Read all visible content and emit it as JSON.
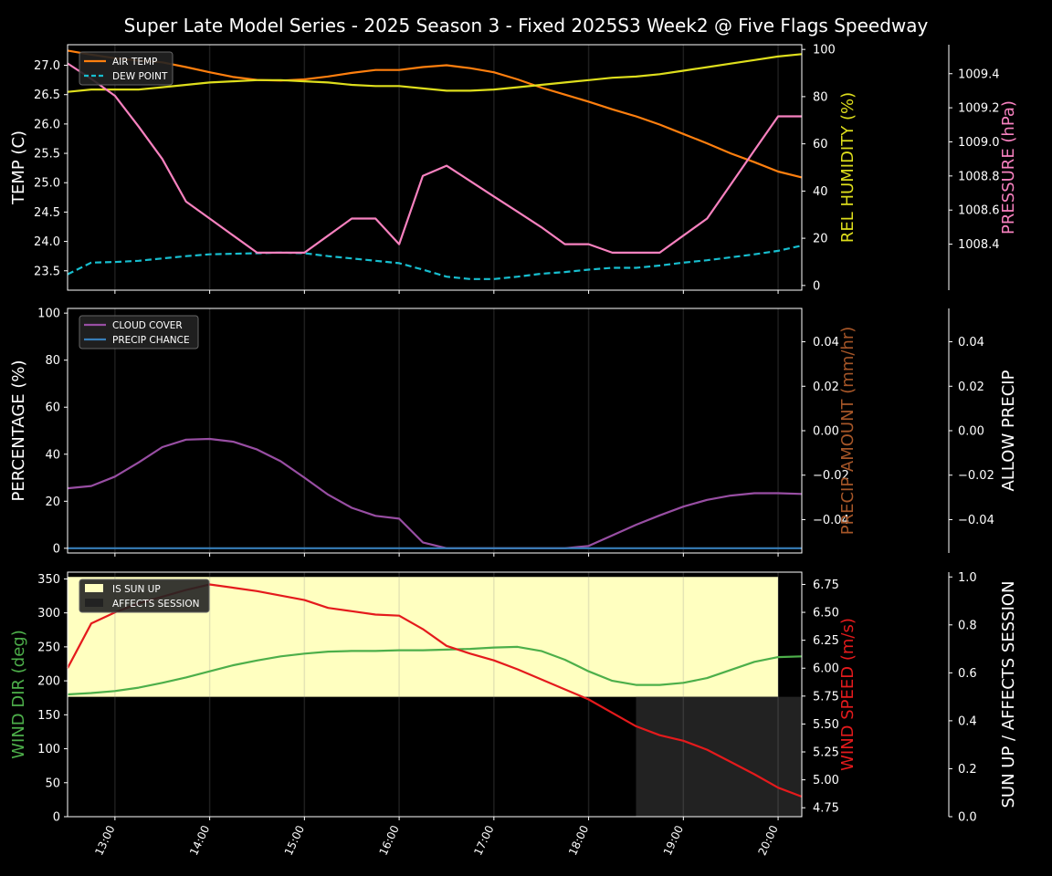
{
  "title": "Super Late Model Series - 2025 Season 3 - Fixed 2025S3 Week2 @ Five Flags Speedway",
  "colors": {
    "background": "#000000",
    "foreground": "#ffffff",
    "air_temp": "#ff7f0e",
    "dew_point": "#17becf",
    "humidity": "#dede1c",
    "pressure": "#f781bf",
    "cloud": "#984ea3",
    "precip_chance": "#377eb8",
    "precip_amount_label": "#a65628",
    "wind_dir": "#4daf4a",
    "wind_speed": "#e41a1c",
    "sun_up": "#ffffc0",
    "affects_session": "#222222"
  },
  "chart_data": [
    {
      "type": "line",
      "panel": "weather",
      "x": [
        "12:30",
        "12:45",
        "13:00",
        "13:15",
        "13:30",
        "13:45",
        "14:00",
        "14:15",
        "14:30",
        "14:45",
        "15:00",
        "15:15",
        "15:30",
        "15:45",
        "16:00",
        "16:15",
        "16:30",
        "16:45",
        "17:00",
        "17:15",
        "17:30",
        "17:45",
        "18:00",
        "18:15",
        "18:30",
        "18:45",
        "19:00",
        "19:15",
        "19:30",
        "19:45",
        "20:00",
        "20:15"
      ],
      "xticks": [
        "13:00",
        "14:00",
        "15:00",
        "16:00",
        "17:00",
        "18:00",
        "19:00",
        "20:00"
      ],
      "legend": [
        "AIR TEMP",
        "DEW POINT"
      ],
      "legend_position": "top-left",
      "left_axis": {
        "label": "TEMP (C)",
        "ylim": [
          23.17,
          27.35
        ],
        "ticks": [
          "23.5",
          "24.0",
          "24.5",
          "25.0",
          "25.5",
          "26.0",
          "26.5",
          "27.0"
        ]
      },
      "mid_axis": {
        "label": "REL HUMIDITY (%)",
        "ylim": [
          -2,
          102
        ],
        "ticks": [
          "0",
          "20",
          "40",
          "60",
          "80",
          "100"
        ]
      },
      "right_axis": {
        "label": "PRESSURE (hPa)",
        "ylim": [
          1008.13,
          1009.57
        ],
        "ticks": [
          "1008.4",
          "1008.6",
          "1008.8",
          "1009.0",
          "1009.2",
          "1009.4"
        ]
      },
      "series": [
        {
          "name": "AIR TEMP",
          "axis": "left",
          "style": "solid",
          "values": [
            27.25,
            27.18,
            27.12,
            27.08,
            27.05,
            26.97,
            26.88,
            26.8,
            26.75,
            26.74,
            26.76,
            26.81,
            26.87,
            26.92,
            26.92,
            26.97,
            27.0,
            26.95,
            26.88,
            26.76,
            26.62,
            26.5,
            26.38,
            26.25,
            26.13,
            25.99,
            25.83,
            25.67,
            25.5,
            25.35,
            25.19,
            25.09
          ]
        },
        {
          "name": "DEW POINT",
          "axis": "left",
          "style": "dashed",
          "values": [
            23.44,
            23.64,
            23.65,
            23.67,
            23.71,
            23.75,
            23.78,
            23.79,
            23.8,
            23.81,
            23.8,
            23.75,
            23.71,
            23.67,
            23.63,
            23.52,
            23.4,
            23.36,
            23.36,
            23.4,
            23.45,
            23.48,
            23.52,
            23.55,
            23.55,
            23.59,
            23.64,
            23.68,
            23.73,
            23.78,
            23.84,
            23.93
          ]
        },
        {
          "axis": "mid",
          "style": "solid",
          "values": [
            82,
            83,
            83,
            83,
            84,
            85,
            86,
            86.5,
            87,
            87,
            86.5,
            86,
            85,
            84.5,
            84.5,
            83.5,
            82.5,
            82.5,
            83,
            84,
            85,
            86,
            87,
            88,
            88.5,
            89.5,
            91,
            92.5,
            94,
            95.5,
            97,
            98
          ]
        },
        {
          "axis": "right",
          "style": "solid",
          "values": [
            1009.46,
            1009.37,
            1009.27,
            1009.09,
            1008.9,
            1008.65,
            1008.55,
            1008.45,
            1008.35,
            1008.35,
            1008.35,
            1008.45,
            1008.55,
            1008.55,
            1008.4,
            1008.8,
            1008.86,
            1008.77,
            1008.68,
            1008.59,
            1008.5,
            1008.4,
            1008.4,
            1008.35,
            1008.35,
            1008.35,
            1008.45,
            1008.55,
            1008.75,
            1008.95,
            1009.15,
            1009.15
          ]
        }
      ]
    },
    {
      "type": "line",
      "panel": "clouds",
      "x": [
        "12:30",
        "12:45",
        "13:00",
        "13:15",
        "13:30",
        "13:45",
        "14:00",
        "14:15",
        "14:30",
        "14:45",
        "15:00",
        "15:15",
        "15:30",
        "15:45",
        "16:00",
        "16:15",
        "16:30",
        "16:45",
        "17:00",
        "17:15",
        "17:30",
        "17:45",
        "18:00",
        "18:15",
        "18:30",
        "18:45",
        "19:00",
        "19:15",
        "19:30",
        "19:45",
        "20:00",
        "20:15"
      ],
      "legend": [
        "CLOUD COVER",
        "PRECIP CHANCE"
      ],
      "legend_position": "top-left",
      "left_axis": {
        "label": "PERCENTAGE (%)",
        "ylim": [
          -2,
          102
        ],
        "ticks": [
          "0",
          "20",
          "40",
          "60",
          "80",
          "100"
        ]
      },
      "mid_axis": {
        "label": "PRECIP AMOUNT (mm/hr)",
        "ylim": [
          -0.055,
          0.055
        ],
        "ticks": [
          "−0.04",
          "−0.02",
          "0.00",
          "0.02",
          "0.04"
        ]
      },
      "right_axis": {
        "label": "ALLOW PRECIP",
        "ylim": [
          -0.055,
          0.055
        ],
        "ticks": [
          "−0.04",
          "−0.02",
          "0.00",
          "0.02",
          "0.04"
        ]
      },
      "series": [
        {
          "name": "CLOUD COVER",
          "axis": "left",
          "style": "solid",
          "values": [
            25.5,
            26.5,
            30.5,
            36.5,
            43,
            46.2,
            46.5,
            45.3,
            42,
            37,
            30,
            22.8,
            17.2,
            13.8,
            12.6,
            2.5,
            0,
            0,
            0,
            0,
            0,
            0,
            1,
            5.5,
            10,
            14,
            17.7,
            20.6,
            22.4,
            23.4,
            23.4,
            23.1
          ]
        },
        {
          "name": "PRECIP CHANCE",
          "axis": "left",
          "style": "solid",
          "values": [
            0,
            0,
            0,
            0,
            0,
            0,
            0,
            0,
            0,
            0,
            0,
            0,
            0,
            0,
            0,
            0,
            0,
            0,
            0,
            0,
            0,
            0,
            0,
            0,
            0,
            0,
            0,
            0,
            0,
            0,
            0,
            0
          ]
        }
      ]
    },
    {
      "type": "line",
      "panel": "wind",
      "x": [
        "12:30",
        "12:45",
        "13:00",
        "13:15",
        "13:30",
        "13:45",
        "14:00",
        "14:15",
        "14:30",
        "14:45",
        "15:00",
        "15:15",
        "15:30",
        "15:45",
        "16:00",
        "16:15",
        "16:30",
        "16:45",
        "17:00",
        "17:15",
        "17:30",
        "17:45",
        "18:00",
        "18:15",
        "18:30",
        "18:45",
        "19:00",
        "19:15",
        "19:30",
        "19:45",
        "20:00",
        "20:15"
      ],
      "xticks": [
        "13:00",
        "14:00",
        "15:00",
        "16:00",
        "17:00",
        "18:00",
        "19:00",
        "20:00"
      ],
      "legend": [
        "IS SUN UP",
        "AFFECTS SESSION"
      ],
      "legend_position": "top-left",
      "left_axis": {
        "label": "WIND DIR (deg)",
        "ylim": [
          0,
          360
        ],
        "ticks": [
          "0",
          "50",
          "100",
          "150",
          "200",
          "250",
          "300",
          "350"
        ]
      },
      "mid_axis": {
        "label": "WIND SPEED (m/s)",
        "ylim": [
          4.67,
          6.86
        ],
        "ticks": [
          "4.75",
          "5.00",
          "5.25",
          "5.50",
          "5.75",
          "6.00",
          "6.25",
          "6.50",
          "6.75"
        ]
      },
      "right_axis": {
        "label": "SUN UP / AFFECTS SESSION",
        "ylim": [
          0,
          1.02
        ],
        "ticks": [
          "0.0",
          "0.2",
          "0.4",
          "0.6",
          "0.8",
          "1.0"
        ]
      },
      "sun_up": {
        "from": "12:30",
        "to": "20:00",
        "value": 1
      },
      "affects_session": {
        "from": "18:30",
        "to": "20:15",
        "value": 0.5
      },
      "series": [
        {
          "axis": "left",
          "style": "solid",
          "values": [
            180,
            182,
            185,
            190,
            197,
            205,
            214,
            223,
            230,
            236,
            240,
            243,
            244,
            244,
            245,
            245,
            246,
            247,
            249,
            250,
            244,
            231,
            214,
            200,
            194,
            194,
            197,
            204,
            216,
            228,
            235,
            236
          ]
        },
        {
          "axis": "mid",
          "style": "solid",
          "values": [
            6.0,
            6.4,
            6.5,
            6.58,
            6.64,
            6.7,
            6.75,
            6.72,
            6.69,
            6.65,
            6.61,
            6.54,
            6.51,
            6.48,
            6.47,
            6.35,
            6.2,
            6.13,
            6.07,
            5.99,
            5.9,
            5.81,
            5.72,
            5.6,
            5.48,
            5.4,
            5.35,
            5.27,
            5.16,
            5.05,
            4.93,
            4.85
          ]
        }
      ]
    }
  ]
}
